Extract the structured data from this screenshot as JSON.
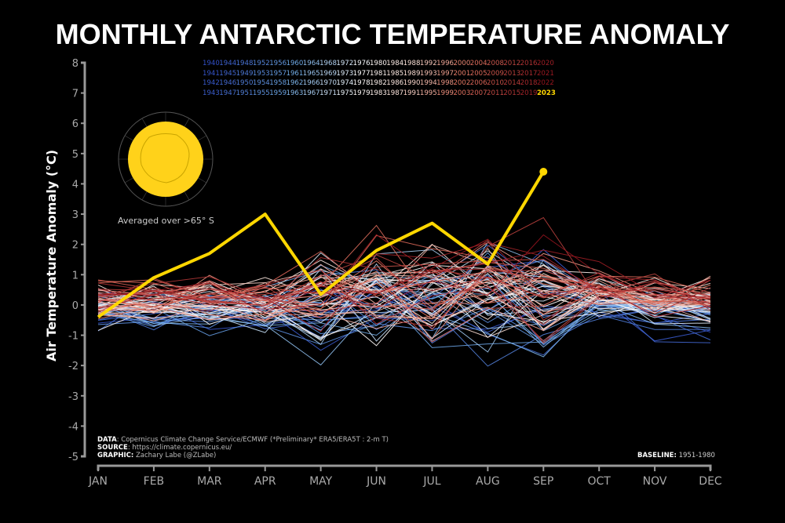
{
  "chart_data": {
    "type": "line",
    "title": "MONTHLY ANTARCTIC TEMPERATURE ANOMALY",
    "ylabel": "Air Temperature Anomaly (°C)",
    "xlabel": "",
    "categories": [
      "JAN",
      "FEB",
      "MAR",
      "APR",
      "MAY",
      "JUN",
      "JUL",
      "AUG",
      "SEP",
      "OCT",
      "NOV",
      "DEC"
    ],
    "ylim": [
      -5,
      8
    ],
    "yticks": [
      -5,
      -4,
      -3,
      -2,
      -1,
      0,
      1,
      2,
      3,
      4,
      5,
      6,
      7,
      8
    ],
    "grid": false,
    "legend_years_start": 1940,
    "legend_years_end": 2023,
    "highlight_series": {
      "name": "2023",
      "color": "#FFD700",
      "values": [
        -0.4,
        0.9,
        1.7,
        3.0,
        0.35,
        1.8,
        2.7,
        1.35,
        4.4
      ]
    },
    "background_series_note": "",
    "annotation_map": "Averaged over >65° S",
    "colors": {
      "early": "#3a5fcd",
      "mid": "#ffffff",
      "late": "#8b0000",
      "highlight": "#FFD700"
    }
  },
  "text": {
    "avg": "Averaged over  >65° S",
    "data_label": "DATA",
    "data_text": ": Copernicus Climate Change Service/ECMWF (*Preliminary* ERA5/ERA5T : 2-m T)",
    "source_label": "SOURCE",
    "source_text": ": https://climate.copernicus.eu/",
    "graphic_label": "GRAPHIC:",
    "graphic_text": " Zachary Labe (@ZLabe)",
    "baseline_label": "BASELINE:",
    "baseline_text": " 1951-1980"
  }
}
